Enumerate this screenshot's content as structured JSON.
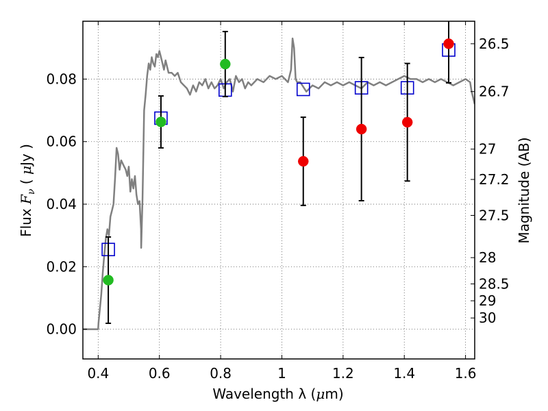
{
  "chart_data": {
    "type": "scatter",
    "xlabel": "Wavelength  λ (μm)",
    "xlabel_text": "Wavelength  λ (",
    "xlabel_unit_symbol": "μ",
    "xlabel_tail": "m)",
    "ylabel": "Flux  Fν ( μJy )",
    "ylabel_pre": "Flux  ",
    "ylabel_var": "F",
    "ylabel_sub": "ν",
    "ylabel_post": " ( ",
    "ylabel_mu": "μ",
    "ylabel_end": "Jy )",
    "ylabel_right": "Magnitude (AB)",
    "xlim": [
      0.35,
      1.63
    ],
    "ylim": [
      -0.0095,
      0.0985
    ],
    "grid": true,
    "x_ticks": [
      0.4,
      0.6,
      0.8,
      1.0,
      1.2,
      1.4,
      1.6
    ],
    "x_tick_labels": [
      "0.4",
      "0.6",
      "0.8",
      "1",
      "1.2",
      "1.4",
      "1.6"
    ],
    "y_ticks": [
      0.0,
      0.02,
      0.04,
      0.06,
      0.08
    ],
    "y_tick_labels": [
      "0.00",
      "0.02",
      "0.04",
      "0.06",
      "0.08"
    ],
    "mag_ticks": [
      {
        "label": "26.5",
        "flux": 0.0913
      },
      {
        "label": "26.7",
        "flux": 0.076
      },
      {
        "label": "27",
        "flux": 0.0576
      },
      {
        "label": "27.2",
        "flux": 0.0479
      },
      {
        "label": "27.5",
        "flux": 0.0364
      },
      {
        "label": "28",
        "flux": 0.0229
      },
      {
        "label": "28.5",
        "flux": 0.0145
      },
      {
        "label": "29",
        "flux": 0.0091
      },
      {
        "label": "30",
        "flux": 0.0036
      }
    ],
    "colors": {
      "model": "#808080",
      "model_points": "#0000cc",
      "green": "#22bb22",
      "red": "#ee0000",
      "errorbar": "#000000",
      "grid": "#555555"
    },
    "series": [
      {
        "type": "line",
        "color": "#808080",
        "x": [
          0.35,
          0.38,
          0.4,
          0.401,
          0.41,
          0.415,
          0.42,
          0.425,
          0.43,
          0.435,
          0.44,
          0.445,
          0.45,
          0.455,
          0.46,
          0.465,
          0.47,
          0.475,
          0.48,
          0.485,
          0.49,
          0.495,
          0.5,
          0.505,
          0.51,
          0.515,
          0.52,
          0.525,
          0.53,
          0.535,
          0.54,
          0.5405,
          0.545,
          0.55,
          0.555,
          0.56,
          0.565,
          0.57,
          0.575,
          0.58,
          0.585,
          0.59,
          0.595,
          0.6,
          0.605,
          0.61,
          0.615,
          0.62,
          0.625,
          0.63,
          0.64,
          0.65,
          0.66,
          0.67,
          0.68,
          0.69,
          0.7,
          0.71,
          0.72,
          0.73,
          0.74,
          0.75,
          0.76,
          0.77,
          0.78,
          0.79,
          0.8,
          0.81,
          0.82,
          0.83,
          0.84,
          0.85,
          0.86,
          0.87,
          0.88,
          0.89,
          0.9,
          0.92,
          0.94,
          0.96,
          0.98,
          1.0,
          1.02,
          1.03,
          1.035,
          1.04,
          1.045,
          1.05,
          1.06,
          1.08,
          1.1,
          1.12,
          1.14,
          1.16,
          1.18,
          1.2,
          1.22,
          1.24,
          1.26,
          1.28,
          1.3,
          1.32,
          1.34,
          1.36,
          1.38,
          1.4,
          1.42,
          1.44,
          1.46,
          1.48,
          1.5,
          1.52,
          1.54,
          1.56,
          1.58,
          1.6,
          1.615,
          1.62,
          1.63
        ],
        "y": [
          0.0,
          0.0,
          0.0,
          0.002,
          0.011,
          0.018,
          0.024,
          0.029,
          0.032,
          0.03,
          0.036,
          0.038,
          0.04,
          0.048,
          0.058,
          0.056,
          0.051,
          0.054,
          0.053,
          0.052,
          0.051,
          0.049,
          0.052,
          0.044,
          0.048,
          0.045,
          0.049,
          0.043,
          0.04,
          0.041,
          0.032,
          0.026,
          0.042,
          0.07,
          0.075,
          0.081,
          0.085,
          0.083,
          0.087,
          0.085,
          0.084,
          0.088,
          0.087,
          0.089,
          0.087,
          0.085,
          0.083,
          0.086,
          0.084,
          0.082,
          0.082,
          0.081,
          0.082,
          0.079,
          0.078,
          0.077,
          0.075,
          0.078,
          0.076,
          0.079,
          0.078,
          0.08,
          0.077,
          0.079,
          0.077,
          0.078,
          0.08,
          0.077,
          0.079,
          0.08,
          0.076,
          0.081,
          0.079,
          0.08,
          0.077,
          0.079,
          0.078,
          0.08,
          0.079,
          0.081,
          0.08,
          0.081,
          0.079,
          0.083,
          0.093,
          0.09,
          0.08,
          0.079,
          0.079,
          0.076,
          0.078,
          0.077,
          0.079,
          0.078,
          0.079,
          0.078,
          0.079,
          0.078,
          0.077,
          0.079,
          0.078,
          0.079,
          0.078,
          0.079,
          0.08,
          0.081,
          0.08,
          0.08,
          0.079,
          0.08,
          0.079,
          0.08,
          0.079,
          0.078,
          0.079,
          0.08,
          0.079,
          0.076,
          0.072
        ]
      },
      {
        "type": "squares",
        "color": "#0000cc",
        "x": [
          0.433,
          0.605,
          0.815,
          1.07,
          1.26,
          1.41,
          1.545
        ],
        "y": [
          0.0255,
          0.0675,
          0.0765,
          0.0767,
          0.0772,
          0.0772,
          0.0893
        ]
      },
      {
        "type": "points",
        "color": "#22bb22",
        "x": [
          0.433,
          0.605,
          0.815
        ],
        "y": [
          0.0157,
          0.0663,
          0.0848
        ],
        "err": [
          0.0138,
          0.0083,
          0.0104
        ]
      },
      {
        "type": "points",
        "color": "#ee0000",
        "x": [
          1.07,
          1.26,
          1.41,
          1.545
        ],
        "y": [
          0.0537,
          0.064,
          0.0662,
          0.0913
        ],
        "err": [
          0.0141,
          0.0229,
          0.0188,
          0.0125
        ]
      }
    ]
  }
}
